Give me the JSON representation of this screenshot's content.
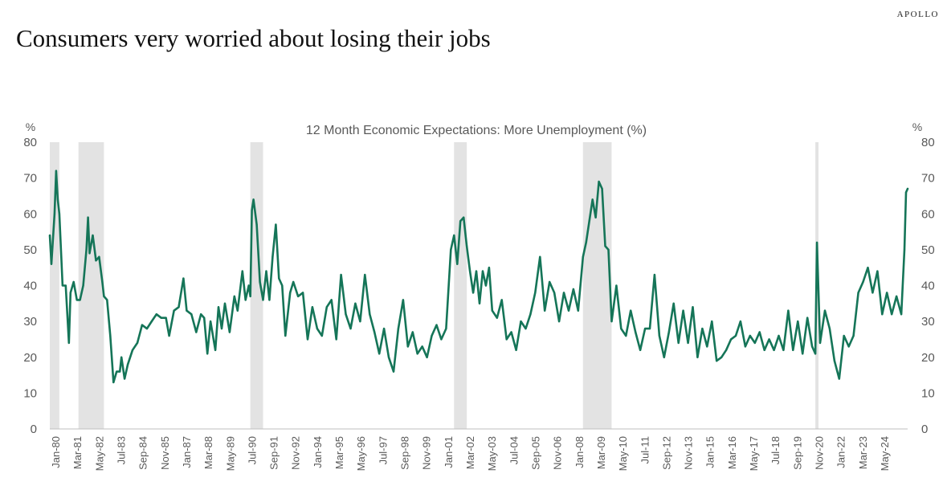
{
  "brand": "APOLLO",
  "headline": "Consumers very worried about losing their jobs",
  "chart_data": {
    "type": "line",
    "title": "12 Month Economic Expectations: More Unemployment (%)",
    "ylabel_left": "%",
    "ylabel_right": "%",
    "ylim": [
      0,
      80
    ],
    "yticks": [
      0,
      10,
      20,
      30,
      40,
      50,
      60,
      70,
      80
    ],
    "xlim": [
      "1980-01",
      "2024-12"
    ],
    "xtick_labels": [
      "Jan-80",
      "Mar-81",
      "May-82",
      "Jul-83",
      "Sep-84",
      "Nov-85",
      "Jan-87",
      "Mar-88",
      "May-89",
      "Jul-90",
      "Sep-91",
      "Nov-92",
      "Jan-94",
      "Mar-95",
      "May-96",
      "Jul-97",
      "Sep-98",
      "Nov-99",
      "Jan-01",
      "Mar-02",
      "May-03",
      "Jul-04",
      "Sep-05",
      "Nov-06",
      "Jan-08",
      "Mar-09",
      "May-10",
      "Jul-11",
      "Sep-12",
      "Nov-13",
      "Jan-15",
      "Mar-16",
      "May-17",
      "Jul-18",
      "Sep-19",
      "Nov-20",
      "Jan-22",
      "Mar-23",
      "May-24"
    ],
    "grid": false,
    "series_color": "#157558",
    "recession_color": "#e3e3e3",
    "recessions": [
      [
        "1980-01",
        "1980-07"
      ],
      [
        "1981-07",
        "1982-11"
      ],
      [
        "1990-07",
        "1991-03"
      ],
      [
        "2001-03",
        "2001-11"
      ],
      [
        "2007-12",
        "2009-06"
      ],
      [
        "2020-02",
        "2020-04"
      ]
    ],
    "series": [
      {
        "points": [
          [
            "1980-01",
            54
          ],
          [
            "1980-02",
            46
          ],
          [
            "1980-04",
            60
          ],
          [
            "1980-05",
            72
          ],
          [
            "1980-06",
            64
          ],
          [
            "1980-07",
            60
          ],
          [
            "1980-09",
            40
          ],
          [
            "1980-11",
            40
          ],
          [
            "1981-01",
            24
          ],
          [
            "1981-02",
            38
          ],
          [
            "1981-04",
            41
          ],
          [
            "1981-06",
            36
          ],
          [
            "1981-08",
            36
          ],
          [
            "1981-10",
            40
          ],
          [
            "1981-12",
            50
          ],
          [
            "1982-01",
            59
          ],
          [
            "1982-02",
            49
          ],
          [
            "1982-04",
            54
          ],
          [
            "1982-06",
            47
          ],
          [
            "1982-08",
            48
          ],
          [
            "1982-10",
            41
          ],
          [
            "1982-11",
            37
          ],
          [
            "1983-01",
            36
          ],
          [
            "1983-03",
            26
          ],
          [
            "1983-05",
            13
          ],
          [
            "1983-07",
            16
          ],
          [
            "1983-09",
            16
          ],
          [
            "1983-10",
            20
          ],
          [
            "1983-12",
            14
          ],
          [
            "1984-02",
            18
          ],
          [
            "1984-05",
            22
          ],
          [
            "1984-08",
            24
          ],
          [
            "1984-11",
            29
          ],
          [
            "1985-02",
            28
          ],
          [
            "1985-05",
            30
          ],
          [
            "1985-08",
            32
          ],
          [
            "1985-11",
            31
          ],
          [
            "1986-02",
            31
          ],
          [
            "1986-04",
            26
          ],
          [
            "1986-07",
            33
          ],
          [
            "1986-10",
            34
          ],
          [
            "1987-01",
            42
          ],
          [
            "1987-03",
            33
          ],
          [
            "1987-06",
            32
          ],
          [
            "1987-09",
            27
          ],
          [
            "1987-12",
            32
          ],
          [
            "1988-02",
            31
          ],
          [
            "1988-04",
            21
          ],
          [
            "1988-06",
            30
          ],
          [
            "1988-09",
            22
          ],
          [
            "1988-11",
            34
          ],
          [
            "1989-01",
            28
          ],
          [
            "1989-03",
            35
          ],
          [
            "1989-06",
            27
          ],
          [
            "1989-09",
            37
          ],
          [
            "1989-11",
            33
          ],
          [
            "1990-02",
            44
          ],
          [
            "1990-04",
            36
          ],
          [
            "1990-06",
            40
          ],
          [
            "1990-07",
            37
          ],
          [
            "1990-08",
            61
          ],
          [
            "1990-09",
            64
          ],
          [
            "1990-11",
            57
          ],
          [
            "1991-01",
            41
          ],
          [
            "1991-03",
            36
          ],
          [
            "1991-05",
            44
          ],
          [
            "1991-07",
            36
          ],
          [
            "1991-09",
            48
          ],
          [
            "1991-11",
            57
          ],
          [
            "1992-01",
            42
          ],
          [
            "1992-03",
            40
          ],
          [
            "1992-05",
            26
          ],
          [
            "1992-08",
            38
          ],
          [
            "1992-10",
            41
          ],
          [
            "1993-01",
            37
          ],
          [
            "1993-04",
            38
          ],
          [
            "1993-07",
            25
          ],
          [
            "1993-10",
            34
          ],
          [
            "1994-01",
            28
          ],
          [
            "1994-04",
            26
          ],
          [
            "1994-07",
            34
          ],
          [
            "1994-10",
            36
          ],
          [
            "1995-01",
            25
          ],
          [
            "1995-04",
            43
          ],
          [
            "1995-07",
            32
          ],
          [
            "1995-10",
            28
          ],
          [
            "1996-01",
            35
          ],
          [
            "1996-04",
            30
          ],
          [
            "1996-07",
            43
          ],
          [
            "1996-10",
            32
          ],
          [
            "1997-01",
            27
          ],
          [
            "1997-04",
            21
          ],
          [
            "1997-07",
            28
          ],
          [
            "1997-10",
            20
          ],
          [
            "1998-01",
            16
          ],
          [
            "1998-04",
            28
          ],
          [
            "1998-07",
            36
          ],
          [
            "1998-10",
            23
          ],
          [
            "1999-01",
            27
          ],
          [
            "1999-04",
            21
          ],
          [
            "1999-07",
            23
          ],
          [
            "1999-10",
            20
          ],
          [
            "2000-01",
            26
          ],
          [
            "2000-04",
            29
          ],
          [
            "2000-07",
            25
          ],
          [
            "2000-10",
            28
          ],
          [
            "2001-01",
            50
          ],
          [
            "2001-03",
            54
          ],
          [
            "2001-05",
            46
          ],
          [
            "2001-07",
            58
          ],
          [
            "2001-09",
            59
          ],
          [
            "2001-11",
            51
          ],
          [
            "2002-01",
            44
          ],
          [
            "2002-03",
            38
          ],
          [
            "2002-05",
            44
          ],
          [
            "2002-07",
            35
          ],
          [
            "2002-09",
            44
          ],
          [
            "2002-11",
            40
          ],
          [
            "2003-01",
            45
          ],
          [
            "2003-03",
            33
          ],
          [
            "2003-06",
            31
          ],
          [
            "2003-09",
            36
          ],
          [
            "2003-12",
            25
          ],
          [
            "2004-03",
            27
          ],
          [
            "2004-06",
            22
          ],
          [
            "2004-09",
            30
          ],
          [
            "2004-12",
            28
          ],
          [
            "2005-03",
            32
          ],
          [
            "2005-06",
            38
          ],
          [
            "2005-09",
            48
          ],
          [
            "2005-12",
            33
          ],
          [
            "2006-03",
            41
          ],
          [
            "2006-06",
            38
          ],
          [
            "2006-09",
            30
          ],
          [
            "2006-12",
            38
          ],
          [
            "2007-03",
            33
          ],
          [
            "2007-06",
            39
          ],
          [
            "2007-09",
            33
          ],
          [
            "2007-12",
            48
          ],
          [
            "2008-02",
            52
          ],
          [
            "2008-04",
            58
          ],
          [
            "2008-06",
            64
          ],
          [
            "2008-08",
            59
          ],
          [
            "2008-10",
            69
          ],
          [
            "2008-12",
            67
          ],
          [
            "2009-02",
            51
          ],
          [
            "2009-04",
            50
          ],
          [
            "2009-06",
            30
          ],
          [
            "2009-09",
            40
          ],
          [
            "2009-12",
            28
          ],
          [
            "2010-03",
            26
          ],
          [
            "2010-06",
            33
          ],
          [
            "2010-09",
            27
          ],
          [
            "2010-12",
            22
          ],
          [
            "2011-03",
            28
          ],
          [
            "2011-06",
            28
          ],
          [
            "2011-09",
            43
          ],
          [
            "2011-12",
            26
          ],
          [
            "2012-03",
            20
          ],
          [
            "2012-06",
            27
          ],
          [
            "2012-09",
            35
          ],
          [
            "2012-12",
            24
          ],
          [
            "2013-03",
            33
          ],
          [
            "2013-06",
            24
          ],
          [
            "2013-09",
            34
          ],
          [
            "2013-12",
            20
          ],
          [
            "2014-03",
            28
          ],
          [
            "2014-06",
            23
          ],
          [
            "2014-09",
            30
          ],
          [
            "2014-12",
            19
          ],
          [
            "2015-03",
            20
          ],
          [
            "2015-06",
            22
          ],
          [
            "2015-09",
            25
          ],
          [
            "2015-12",
            26
          ],
          [
            "2016-03",
            30
          ],
          [
            "2016-06",
            23
          ],
          [
            "2016-09",
            26
          ],
          [
            "2016-12",
            24
          ],
          [
            "2017-03",
            27
          ],
          [
            "2017-06",
            22
          ],
          [
            "2017-09",
            25
          ],
          [
            "2017-12",
            22
          ],
          [
            "2018-03",
            26
          ],
          [
            "2018-06",
            22
          ],
          [
            "2018-09",
            33
          ],
          [
            "2018-12",
            22
          ],
          [
            "2019-03",
            30
          ],
          [
            "2019-06",
            21
          ],
          [
            "2019-09",
            31
          ],
          [
            "2019-12",
            23
          ],
          [
            "2020-02",
            21
          ],
          [
            "2020-03",
            52
          ],
          [
            "2020-05",
            24
          ],
          [
            "2020-08",
            33
          ],
          [
            "2020-11",
            28
          ],
          [
            "2021-02",
            19
          ],
          [
            "2021-05",
            14
          ],
          [
            "2021-08",
            26
          ],
          [
            "2021-11",
            23
          ],
          [
            "2022-02",
            26
          ],
          [
            "2022-05",
            38
          ],
          [
            "2022-08",
            41
          ],
          [
            "2022-11",
            45
          ],
          [
            "2023-02",
            38
          ],
          [
            "2023-05",
            44
          ],
          [
            "2023-08",
            32
          ],
          [
            "2023-11",
            38
          ],
          [
            "2024-02",
            32
          ],
          [
            "2024-05",
            37
          ],
          [
            "2024-08",
            32
          ],
          [
            "2024-10",
            50
          ],
          [
            "2024-11",
            66
          ],
          [
            "2024-12",
            67
          ]
        ]
      }
    ]
  }
}
